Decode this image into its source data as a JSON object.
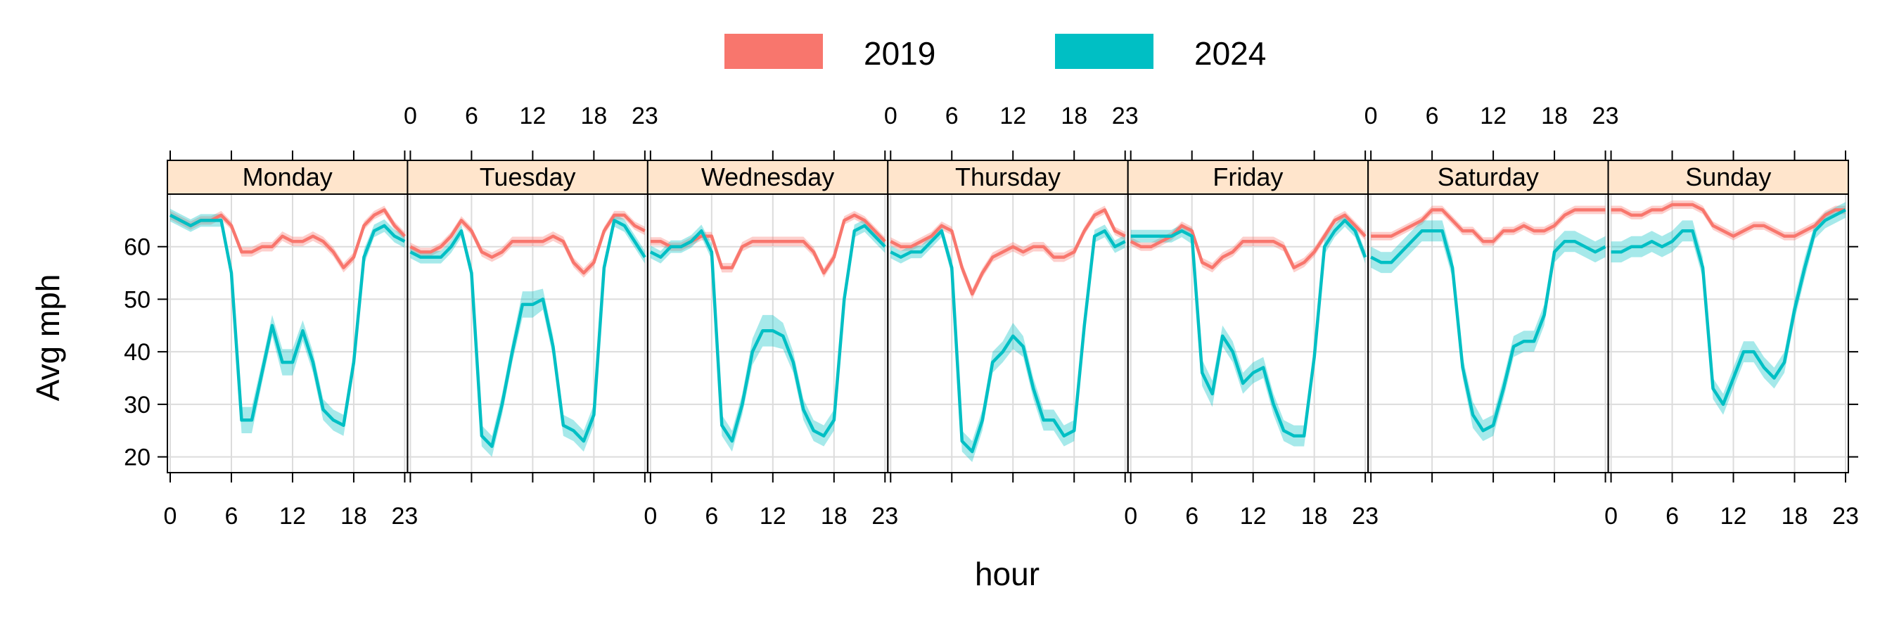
{
  "chart_data": {
    "type": "line",
    "layout": "panels-by-day",
    "xlabel": "hour",
    "ylabel": "Avg mph",
    "ylim": [
      17,
      70
    ],
    "xlim": [
      0,
      23
    ],
    "x_ticks": [
      0,
      6,
      12,
      18,
      23
    ],
    "x_tick_labels": [
      "0",
      "6",
      "12",
      "18",
      "23"
    ],
    "y_ticks": [
      20,
      30,
      40,
      50,
      60
    ],
    "y_tick_labels": [
      "20",
      "30",
      "40",
      "50",
      "60"
    ],
    "grid": true,
    "legend": {
      "position": "top",
      "entries": [
        {
          "label": "2019",
          "color": "#F8766D"
        },
        {
          "label": "2024",
          "color": "#00BFC4"
        }
      ]
    },
    "panels": [
      {
        "label": "Monday",
        "series": [
          {
            "name": "2019",
            "color": "#F8766D",
            "values": [
              66,
              65,
              64,
              65,
              65,
              66,
              64,
              59,
              59,
              60,
              60,
              62,
              61,
              61,
              62,
              61,
              59,
              56,
              58,
              64,
              66,
              67,
              64,
              62
            ],
            "band": [
              0.8,
              0.8,
              0.8,
              0.8,
              0.8,
              0.8,
              0.8,
              0.9,
              0.9,
              0.9,
              0.9,
              0.9,
              0.9,
              0.9,
              0.9,
              0.9,
              0.9,
              0.9,
              0.9,
              0.8,
              0.8,
              0.8,
              0.8,
              0.8
            ]
          },
          {
            "name": "2024",
            "color": "#00BFC4",
            "values": [
              66,
              65,
              64,
              65,
              65,
              65,
              55,
              27,
              27,
              36,
              45,
              38,
              38,
              44,
              38,
              29,
              27,
              26,
              38,
              58,
              63,
              64,
              62,
              61
            ],
            "band": [
              1.2,
              1.2,
              1.2,
              1.2,
              1.2,
              1.2,
              1.5,
              2.5,
              2.5,
              2,
              2,
              2.5,
              2.5,
              2,
              2,
              2,
              2,
              2,
              2,
              1.5,
              1.2,
              1.2,
              1.2,
              1.2
            ]
          }
        ]
      },
      {
        "label": "Tuesday",
        "series": [
          {
            "name": "2019",
            "color": "#F8766D",
            "values": [
              60,
              59,
              59,
              60,
              62,
              65,
              63,
              59,
              58,
              59,
              61,
              61,
              61,
              61,
              62,
              61,
              57,
              55,
              57,
              63,
              66,
              66,
              64,
              63
            ],
            "band": [
              0.8,
              0.8,
              0.8,
              0.8,
              0.8,
              0.8,
              0.8,
              0.9,
              0.9,
              0.9,
              0.9,
              0.9,
              0.9,
              0.9,
              0.9,
              0.9,
              0.9,
              0.9,
              0.9,
              0.8,
              0.8,
              0.8,
              0.8,
              0.8
            ]
          },
          {
            "name": "2024",
            "color": "#00BFC4",
            "values": [
              59,
              58,
              58,
              58,
              60,
              63,
              55,
              24,
              22,
              30,
              40,
              49,
              49,
              50,
              41,
              26,
              25,
              23,
              28,
              56,
              65,
              64,
              61,
              58
            ],
            "band": [
              1.2,
              1.2,
              1.2,
              1.2,
              1.2,
              1.2,
              1.5,
              2,
              2,
              2,
              2,
              2.5,
              2.5,
              2,
              2,
              2,
              2,
              2,
              2,
              1.5,
              1.2,
              1.2,
              1.2,
              1.2
            ]
          }
        ]
      },
      {
        "label": "Wednesday",
        "series": [
          {
            "name": "2019",
            "color": "#F8766D",
            "values": [
              61,
              61,
              60,
              60,
              61,
              62,
              62,
              56,
              56,
              60,
              61,
              61,
              61,
              61,
              61,
              61,
              59,
              55,
              58,
              65,
              66,
              65,
              63,
              61
            ],
            "band": [
              0.8,
              0.8,
              0.8,
              0.8,
              0.8,
              0.8,
              0.8,
              0.9,
              0.9,
              0.9,
              0.9,
              0.9,
              0.9,
              0.9,
              0.9,
              0.9,
              0.9,
              0.9,
              0.9,
              0.8,
              0.8,
              0.8,
              0.8,
              0.8
            ]
          },
          {
            "name": "2024",
            "color": "#00BFC4",
            "values": [
              59,
              58,
              60,
              60,
              61,
              63,
              59,
              26,
              23,
              30,
              40,
              44,
              44,
              43,
              38,
              29,
              25,
              24,
              27,
              50,
              63,
              64,
              62,
              60
            ],
            "band": [
              1.2,
              1.2,
              1.2,
              1.2,
              1.2,
              1.2,
              1.5,
              2,
              2,
              2,
              2.5,
              3,
              3,
              2.5,
              2,
              2,
              2,
              2,
              2,
              1.5,
              1.2,
              1.2,
              1.2,
              1.2
            ]
          }
        ]
      },
      {
        "label": "Thursday",
        "series": [
          {
            "name": "2019",
            "color": "#F8766D",
            "values": [
              61,
              60,
              60,
              61,
              62,
              64,
              63,
              56,
              51,
              55,
              58,
              59,
              60,
              59,
              60,
              60,
              58,
              58,
              59,
              63,
              66,
              67,
              63,
              62
            ],
            "band": [
              0.8,
              0.8,
              0.8,
              0.8,
              0.8,
              0.8,
              0.8,
              1,
              1,
              0.9,
              0.9,
              0.9,
              0.9,
              0.9,
              0.9,
              0.9,
              0.9,
              0.9,
              0.9,
              0.8,
              0.8,
              0.8,
              0.8,
              0.8
            ]
          },
          {
            "name": "2024",
            "color": "#00BFC4",
            "values": [
              59,
              58,
              59,
              59,
              61,
              63,
              56,
              23,
              21,
              27,
              38,
              40,
              43,
              41,
              33,
              27,
              27,
              24,
              25,
              45,
              62,
              63,
              60,
              61
            ],
            "band": [
              1.2,
              1.2,
              1.2,
              1.2,
              1.2,
              1.2,
              1.5,
              2,
              2,
              2,
              2,
              2,
              2.5,
              2,
              2,
              2,
              2,
              2,
              2,
              1.5,
              1.2,
              1.2,
              1.2,
              1.2
            ]
          }
        ]
      },
      {
        "label": "Friday",
        "series": [
          {
            "name": "2019",
            "color": "#F8766D",
            "values": [
              61,
              60,
              60,
              61,
              62,
              64,
              63,
              57,
              56,
              58,
              59,
              61,
              61,
              61,
              61,
              60,
              56,
              57,
              59,
              62,
              65,
              66,
              64,
              62
            ],
            "band": [
              0.8,
              0.8,
              0.8,
              0.8,
              0.8,
              0.8,
              0.8,
              0.9,
              0.9,
              0.9,
              0.9,
              0.9,
              0.9,
              0.9,
              0.9,
              0.9,
              0.9,
              0.9,
              0.9,
              0.8,
              0.8,
              0.8,
              0.8,
              0.8
            ]
          },
          {
            "name": "2024",
            "color": "#00BFC4",
            "values": [
              62,
              62,
              62,
              62,
              62,
              63,
              62,
              36,
              32,
              43,
              40,
              34,
              36,
              37,
              30,
              25,
              24,
              24,
              39,
              60,
              63,
              65,
              63,
              58
            ],
            "band": [
              1.2,
              1.2,
              1.2,
              1.2,
              1.2,
              1.2,
              1.5,
              2.5,
              2.5,
              2,
              2,
              2,
              2,
              2,
              2,
              2,
              2,
              2,
              2,
              1.5,
              1.2,
              1.2,
              1.2,
              1.2
            ]
          }
        ]
      },
      {
        "label": "Saturday",
        "series": [
          {
            "name": "2019",
            "color": "#F8766D",
            "values": [
              62,
              62,
              62,
              63,
              64,
              65,
              67,
              67,
              65,
              63,
              63,
              61,
              61,
              63,
              63,
              64,
              63,
              63,
              64,
              66,
              67,
              67,
              67,
              67
            ],
            "band": [
              0.8,
              0.8,
              0.8,
              0.8,
              0.8,
              0.8,
              0.8,
              0.8,
              0.8,
              0.8,
              0.8,
              0.8,
              0.8,
              0.8,
              0.8,
              0.8,
              0.8,
              0.8,
              0.8,
              0.8,
              0.8,
              0.8,
              0.8,
              0.8
            ]
          },
          {
            "name": "2024",
            "color": "#00BFC4",
            "values": [
              58,
              57,
              57,
              59,
              61,
              63,
              63,
              63,
              56,
              37,
              28,
              25,
              26,
              33,
              41,
              42,
              42,
              47,
              59,
              61,
              61,
              60,
              59,
              60
            ],
            "band": [
              2,
              2,
              2,
              2,
              2,
              2,
              2,
              2,
              2,
              2,
              2.5,
              2,
              2,
              2,
              2,
              2,
              2,
              2,
              2,
              2,
              2,
              2,
              2,
              2
            ]
          }
        ]
      },
      {
        "label": "Sunday",
        "series": [
          {
            "name": "2019",
            "color": "#F8766D",
            "values": [
              67,
              67,
              66,
              66,
              67,
              67,
              68,
              68,
              68,
              67,
              64,
              63,
              62,
              63,
              64,
              64,
              63,
              62,
              62,
              63,
              64,
              66,
              67,
              67
            ],
            "band": [
              0.8,
              0.8,
              0.8,
              0.8,
              0.8,
              0.8,
              0.8,
              0.8,
              0.8,
              0.8,
              0.8,
              0.8,
              0.8,
              0.8,
              0.8,
              0.8,
              0.8,
              0.8,
              0.8,
              0.8,
              0.8,
              0.8,
              0.8,
              0.8
            ]
          },
          {
            "name": "2024",
            "color": "#00BFC4",
            "values": [
              59,
              59,
              60,
              60,
              61,
              60,
              61,
              63,
              63,
              56,
              33,
              30,
              35,
              40,
              40,
              37,
              35,
              38,
              48,
              56,
              63,
              65,
              66,
              67
            ],
            "band": [
              2,
              2,
              2,
              2,
              2,
              2,
              2,
              2,
              2,
              2,
              2,
              2,
              2,
              2,
              2,
              2,
              2,
              2,
              2,
              2,
              1.5,
              1.5,
              1.5,
              1.5
            ]
          }
        ]
      }
    ]
  }
}
